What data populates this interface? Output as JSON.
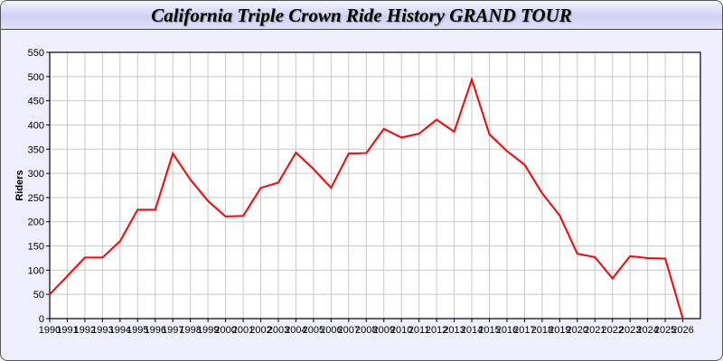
{
  "chart_data": {
    "type": "line",
    "title": "California Triple Crown Ride History GRAND TOUR",
    "xlabel": "",
    "ylabel": "Riders",
    "xlim": [
      1990,
      2027
    ],
    "ylim": [
      0,
      550
    ],
    "yticks": [
      0,
      50,
      100,
      150,
      200,
      250,
      300,
      350,
      400,
      450,
      500,
      550
    ],
    "grid": true,
    "line_color": "#ff0000",
    "series": [
      {
        "x": [
          1990,
          1991,
          1992,
          1993,
          1994,
          1995,
          1996,
          1997,
          1998,
          1999,
          2000,
          2001,
          2002,
          2003,
          2004,
          2005,
          2006,
          2007,
          2008,
          2009,
          2010,
          2011,
          2012,
          2013,
          2014,
          2015,
          2016,
          2017,
          2018,
          2019,
          2020,
          2021,
          2022,
          2023,
          2024,
          2025,
          2026
        ],
        "y": [
          50,
          88,
          126,
          126,
          160,
          225,
          225,
          341,
          287,
          243,
          211,
          212,
          270,
          281,
          343,
          309,
          270,
          341,
          342,
          392,
          374,
          382,
          411,
          386,
          494,
          381,
          346,
          318,
          259,
          213,
          134,
          127,
          83,
          129,
          125,
          124,
          0
        ]
      }
    ]
  }
}
